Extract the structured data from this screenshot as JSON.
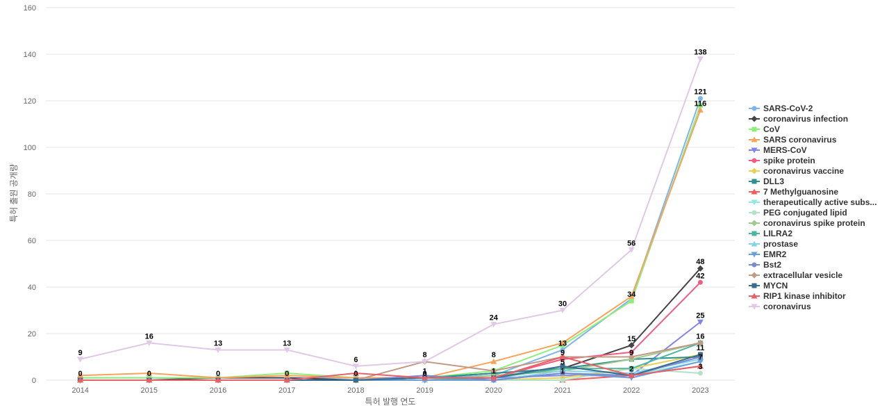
{
  "chart_data": {
    "type": "line",
    "xlabel": "특허 발행 연도",
    "ylabel": "특허 출원 공개량",
    "ylim": [
      0,
      160
    ],
    "yticks": [
      0,
      20,
      40,
      60,
      80,
      100,
      120,
      140,
      160
    ],
    "x": [
      "2014",
      "2015",
      "2016",
      "2017",
      "2018",
      "2019",
      "2020",
      "2021",
      "2022",
      "2023"
    ],
    "grid": "horizontal",
    "legend_position": "right",
    "series": [
      {
        "name": "SARS-CoV-2",
        "color": "#7cb5ec",
        "marker": "circle",
        "values": [
          1,
          1,
          1,
          1,
          1,
          1,
          2,
          13,
          35,
          121
        ]
      },
      {
        "name": "coronavirus infection",
        "color": "#434348",
        "marker": "diamond",
        "values": [
          0,
          0,
          1,
          1,
          0,
          1,
          3,
          5,
          15,
          48
        ]
      },
      {
        "name": "CoV",
        "color": "#90ed7d",
        "marker": "square",
        "values": [
          1,
          1,
          1,
          3,
          1,
          1,
          4,
          15,
          34,
          118
        ]
      },
      {
        "name": "SARS coronavirus",
        "color": "#f7a35c",
        "marker": "triangle",
        "values": [
          2,
          3,
          1,
          2,
          1,
          1,
          8,
          16,
          36,
          116
        ]
      },
      {
        "name": "MERS-CoV",
        "color": "#8085e9",
        "marker": "triangle-down",
        "values": [
          0,
          0,
          0,
          0,
          0,
          1,
          1,
          2,
          2,
          25
        ]
      },
      {
        "name": "spike protein",
        "color": "#f15c80",
        "marker": "circle",
        "values": [
          0,
          0,
          0,
          0,
          0,
          1,
          1,
          9,
          12,
          42
        ]
      },
      {
        "name": "coronavirus vaccine",
        "color": "#e4d354",
        "marker": "diamond",
        "values": [
          0,
          0,
          0,
          0,
          0,
          0,
          0,
          1,
          5,
          11
        ]
      },
      {
        "name": "DLL3",
        "color": "#2b908f",
        "marker": "square",
        "values": [
          0,
          0,
          0,
          0,
          0,
          1,
          3,
          5,
          9,
          10
        ]
      },
      {
        "name": "7 Methylguanosine",
        "color": "#f45b5b",
        "marker": "triangle",
        "values": [
          0,
          0,
          0,
          0,
          0,
          0,
          0,
          0,
          2,
          6
        ]
      },
      {
        "name": "therapeutically active subs...",
        "color": "#91e8e1",
        "marker": "triangle-down",
        "values": [
          0,
          0,
          0,
          0,
          0,
          0,
          0,
          3,
          2,
          8
        ]
      },
      {
        "name": "PEG conjugated lipid",
        "color": "#b3e0c8",
        "marker": "circle",
        "values": [
          0,
          0,
          0,
          0,
          0,
          0,
          0,
          0,
          5,
          3
        ]
      },
      {
        "name": "coronavirus spike protein",
        "color": "#a0c98e",
        "marker": "diamond",
        "values": [
          0,
          0,
          0,
          0,
          0,
          0,
          2,
          4,
          9,
          16
        ]
      },
      {
        "name": "LILRA2",
        "color": "#4db6a0",
        "marker": "square",
        "values": [
          0,
          0,
          0,
          0,
          0,
          0,
          1,
          5,
          5,
          16
        ]
      },
      {
        "name": "prostase",
        "color": "#87d4ea",
        "marker": "triangle",
        "values": [
          0,
          0,
          0,
          0,
          0,
          0,
          0,
          4,
          3,
          9
        ]
      },
      {
        "name": "EMR2",
        "color": "#6b9fd6",
        "marker": "triangle-down",
        "values": [
          0,
          0,
          0,
          0,
          0,
          0,
          0,
          3,
          1,
          8
        ]
      },
      {
        "name": "Bst2",
        "color": "#7b8bd0",
        "marker": "circle",
        "values": [
          0,
          0,
          0,
          0,
          0,
          2,
          0,
          3,
          2,
          10
        ]
      },
      {
        "name": "extracellular vesicle",
        "color": "#c09a84",
        "marker": "diamond",
        "values": [
          0,
          0,
          0,
          0,
          0,
          8,
          4,
          10,
          10,
          16
        ]
      },
      {
        "name": "MYCN",
        "color": "#3a6b8c",
        "marker": "square",
        "values": [
          0,
          0,
          0,
          0,
          0,
          1,
          1,
          6,
          2,
          11
        ]
      },
      {
        "name": "RIP1 kinase inhibitor",
        "color": "#e8606a",
        "marker": "triangle",
        "values": [
          0,
          0,
          0,
          0,
          3,
          1,
          1,
          10,
          2,
          6
        ]
      },
      {
        "name": "coronavirus",
        "color": "#e0c8e6",
        "marker": "triangle-down",
        "values": [
          9,
          16,
          13,
          13,
          6,
          8,
          24,
          30,
          56,
          138
        ]
      }
    ],
    "data_labels": [
      {
        "x": "2014",
        "text": "9",
        "y": 9
      },
      {
        "x": "2014",
        "text": "0",
        "y": 0
      },
      {
        "x": "2015",
        "text": "16",
        "y": 16
      },
      {
        "x": "2015",
        "text": "0",
        "y": 0
      },
      {
        "x": "2016",
        "text": "13",
        "y": 13
      },
      {
        "x": "2016",
        "text": "0",
        "y": 0
      },
      {
        "x": "2017",
        "text": "13",
        "y": 13
      },
      {
        "x": "2017",
        "text": "0",
        "y": 0
      },
      {
        "x": "2018",
        "text": "6",
        "y": 6
      },
      {
        "x": "2018",
        "text": "0",
        "y": 0
      },
      {
        "x": "2019",
        "text": "8",
        "y": 8
      },
      {
        "x": "2019",
        "text": "0",
        "y": 0
      },
      {
        "x": "2019",
        "text": "1",
        "y": 1
      },
      {
        "x": "2020",
        "text": "24",
        "y": 24
      },
      {
        "x": "2020",
        "text": "8",
        "y": 8
      },
      {
        "x": "2020",
        "text": "1",
        "y": 1
      },
      {
        "x": "2021",
        "text": "30",
        "y": 30
      },
      {
        "x": "2021",
        "text": "13",
        "y": 13
      },
      {
        "x": "2021",
        "text": "9",
        "y": 9
      },
      {
        "x": "2021",
        "text": "5",
        "y": 5
      },
      {
        "x": "2021",
        "text": "1",
        "y": 1
      },
      {
        "x": "2022",
        "text": "56",
        "y": 56
      },
      {
        "x": "2022",
        "text": "34",
        "y": 34
      },
      {
        "x": "2022",
        "text": "15",
        "y": 15
      },
      {
        "x": "2022",
        "text": "9",
        "y": 9
      },
      {
        "x": "2022",
        "text": "2",
        "y": 2
      },
      {
        "x": "2023",
        "text": "138",
        "y": 138
      },
      {
        "x": "2023",
        "text": "121",
        "y": 121
      },
      {
        "x": "2023",
        "text": "116",
        "y": 116
      },
      {
        "x": "2023",
        "text": "48",
        "y": 48
      },
      {
        "x": "2023",
        "text": "42",
        "y": 42
      },
      {
        "x": "2023",
        "text": "25",
        "y": 25
      },
      {
        "x": "2023",
        "text": "16",
        "y": 16
      },
      {
        "x": "2023",
        "text": "11",
        "y": 11
      },
      {
        "x": "2023",
        "text": "7",
        "y": 7
      },
      {
        "x": "2023",
        "text": "3",
        "y": 3
      }
    ]
  }
}
